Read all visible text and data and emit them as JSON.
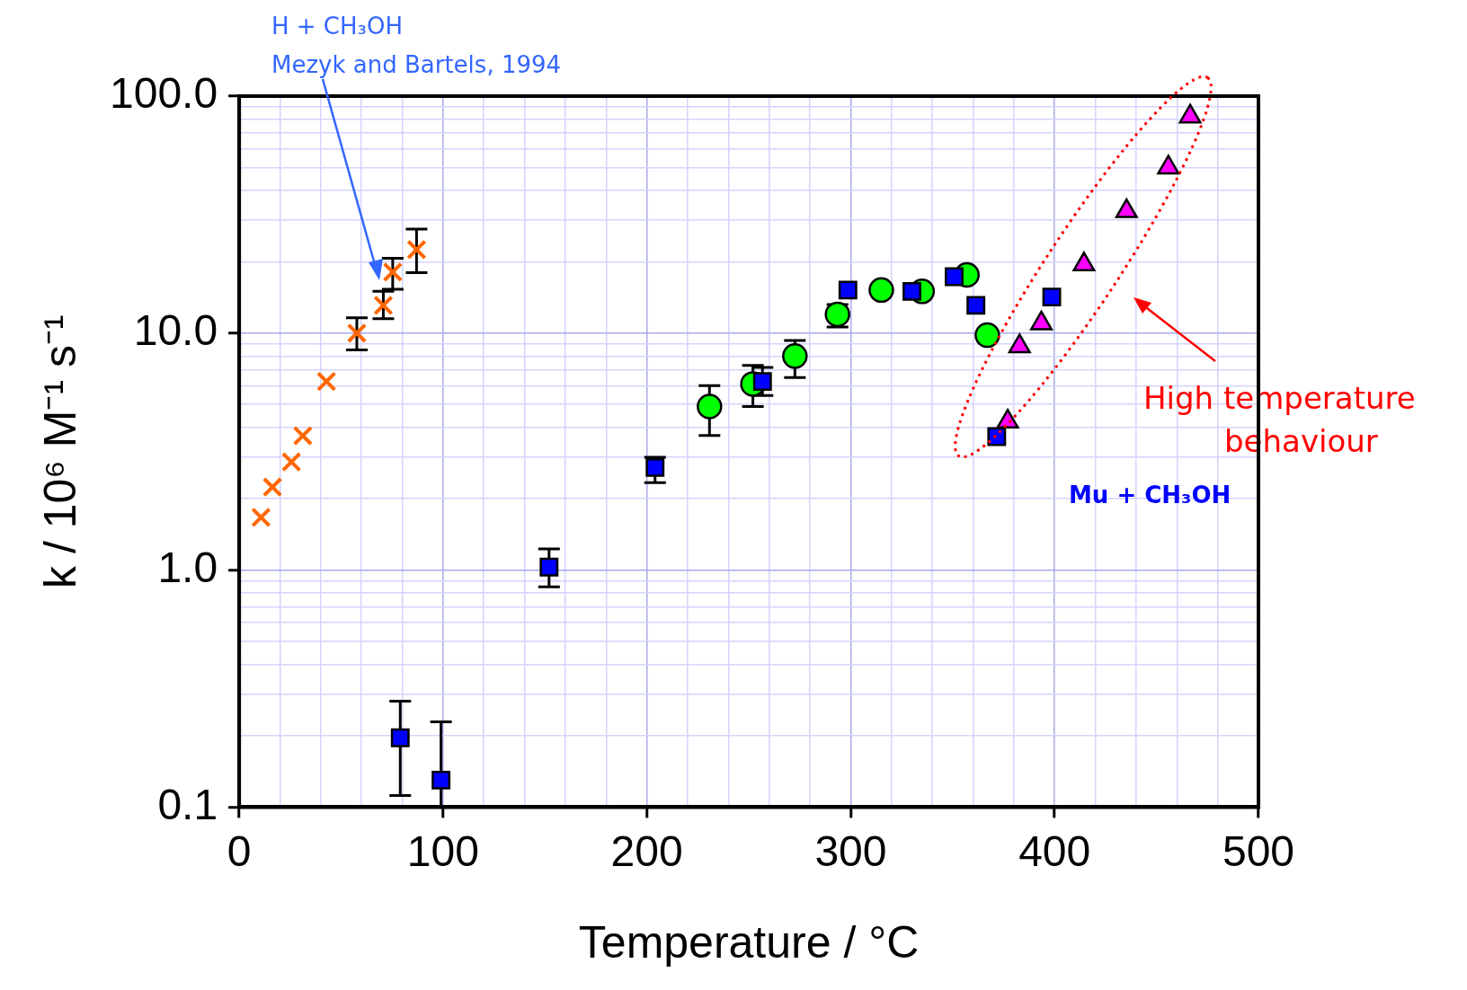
{
  "chart_data": {
    "type": "scatter",
    "xlabel": "Temperature / °C",
    "ylabel": "k / 10⁶ M⁻¹ s⁻¹",
    "log": "y",
    "grid": true,
    "legend": false,
    "xlim": [
      0,
      500
    ],
    "xticks": [
      0,
      {
        "value": 20,
        "label": null
      },
      {
        "value": 40,
        "label": null
      },
      {
        "value": 60,
        "label": null
      },
      {
        "value": 80,
        "label": null
      },
      100,
      {
        "value": 120,
        "label": null
      },
      {
        "value": 140,
        "label": null
      },
      {
        "value": 160,
        "label": null
      },
      {
        "value": 180,
        "label": null
      },
      200,
      {
        "value": 220,
        "label": null
      },
      {
        "value": 240,
        "label": null
      },
      {
        "value": 260,
        "label": null
      },
      {
        "value": 280,
        "label": null
      },
      300,
      {
        "value": 320,
        "label": null
      },
      {
        "value": 340,
        "label": null
      },
      {
        "value": 360,
        "label": null
      },
      {
        "value": 380,
        "label": null
      },
      400,
      {
        "value": 420,
        "label": null
      },
      {
        "value": 440,
        "label": null
      },
      {
        "value": 460,
        "label": null
      },
      {
        "value": 480,
        "label": null
      },
      500
    ],
    "ylim": [
      0.1,
      100
    ],
    "yticks": [
      {
        "value": 0.1,
        "label": "0.1"
      },
      {
        "value": 0.2,
        "label": null
      },
      {
        "value": 0.3,
        "label": null
      },
      {
        "value": 0.4,
        "label": null
      },
      {
        "value": 0.5,
        "label": null
      },
      {
        "value": 0.6,
        "label": null
      },
      {
        "value": 0.7,
        "label": null
      },
      {
        "value": 0.8,
        "label": null
      },
      {
        "value": 0.9,
        "label": null
      },
      {
        "value": 1,
        "label": "1.0"
      },
      {
        "value": 2,
        "label": null
      },
      {
        "value": 3,
        "label": null
      },
      {
        "value": 4,
        "label": null
      },
      {
        "value": 5,
        "label": null
      },
      {
        "value": 6,
        "label": null
      },
      {
        "value": 7,
        "label": null
      },
      {
        "value": 8,
        "label": null
      },
      {
        "value": 9,
        "label": null
      },
      {
        "value": 10,
        "label": "10.0"
      },
      {
        "value": 20,
        "label": null
      },
      {
        "value": 30,
        "label": null
      },
      {
        "value": 40,
        "label": null
      },
      {
        "value": 50,
        "label": null
      },
      {
        "value": 60,
        "label": null
      },
      {
        "value": 70,
        "label": null
      },
      {
        "value": 80,
        "label": null
      },
      {
        "value": 90,
        "label": null
      },
      {
        "value": 100,
        "label": "100.0"
      }
    ],
    "series": [
      {
        "color": "#ff6600",
        "marker": "cross",
        "x": [
          10.7,
          16.3,
          25.6,
          31.2,
          42.8,
          57.7,
          70.7,
          75.3,
          87
        ],
        "values": [
          1.67,
          2.24,
          2.86,
          3.69,
          6.25,
          10,
          13.1,
          18.1,
          22.5
        ],
        "errors": [
          null,
          null,
          null,
          null,
          null,
          [
            8.5,
            11.6
          ],
          [
            11.5,
            15
          ],
          [
            15.3,
            20.7
          ],
          [
            18,
            27.5
          ]
        ]
      },
      {
        "color": "#00ff00",
        "marker": "circle",
        "x": [
          230.7,
          252,
          272.6,
          293.5,
          315,
          335,
          357,
          367
        ],
        "values": [
          4.9,
          6.1,
          8,
          12,
          15.2,
          15,
          17.6,
          9.8
        ],
        "errors": [
          [
            3.7,
            6
          ],
          [
            4.9,
            7.3
          ],
          [
            6.5,
            9.3
          ],
          [
            10.6,
            13.2
          ],
          null,
          null,
          null,
          null
        ]
      },
      {
        "color": "#0000ff",
        "marker": "square",
        "x": [
          79,
          99,
          152,
          204,
          256.7,
          298.6,
          330,
          350.7,
          361.4,
          371.6,
          398.6
        ],
        "values": [
          0.196,
          0.13,
          1.03,
          2.71,
          6.25,
          15.2,
          15,
          17.3,
          13.1,
          3.66,
          14.2
        ],
        "errors": [
          [
            0.112,
            0.28
          ],
          [
            0.1,
            0.229
          ],
          [
            0.85,
            1.23
          ],
          [
            2.34,
            2.99
          ],
          [
            5.46,
            7.16
          ],
          null,
          null,
          null,
          null,
          null,
          null
        ]
      },
      {
        "color": "#ff00ff",
        "marker": "triangle",
        "x": [
          377,
          382.8,
          393.5,
          414.4,
          435.3,
          455.8,
          466.5
        ],
        "values": [
          4.23,
          8.8,
          11,
          19.5,
          32.7,
          50,
          82
        ],
        "errors": [
          null,
          null,
          null,
          null,
          null,
          null,
          null
        ]
      }
    ],
    "annotations": [
      "H + CH₃OH",
      "Mezyk and Bartels, 1994",
      "High temperature",
      "behaviour",
      "Mu + CH₃OH"
    ]
  }
}
